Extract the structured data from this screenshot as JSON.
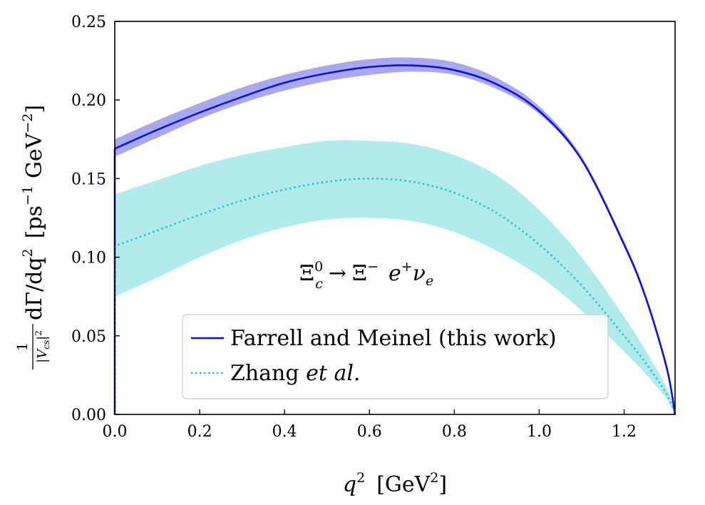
{
  "chart_data": {
    "type": "line",
    "xlabel": {
      "var": "q",
      "sup": "2",
      "unit_open": "[GeV",
      "unit_sup": "2",
      "unit_close": "]"
    },
    "ylabel": {
      "frac_num": "1",
      "frac_den": "|V",
      "frac_den_sub": "cs",
      "frac_den_close": "|",
      "frac_den_sup": "2",
      "main": "dΓ/dq",
      "main_sup": "2",
      "unit_a": "[ps",
      "unit_a_sup": "−1",
      "unit_b": "GeV",
      "unit_b_sup": "−2",
      "unit_close": "]"
    },
    "xlim": [
      0.0,
      1.32
    ],
    "ylim": [
      0.0,
      0.25
    ],
    "x_ticks": [
      0.0,
      0.2,
      0.4,
      0.6,
      0.8,
      1.0,
      1.2
    ],
    "x_tick_labels": [
      "0.0",
      "0.2",
      "0.4",
      "0.6",
      "0.8",
      "1.0",
      "1.2"
    ],
    "y_ticks": [
      0.0,
      0.05,
      0.1,
      0.15,
      0.2,
      0.25
    ],
    "y_tick_labels": [
      "0.00",
      "0.05",
      "0.10",
      "0.15",
      "0.20",
      "0.25"
    ],
    "grid": false,
    "legend_position": "lower-center",
    "annotation": {
      "Xi": "Ξ",
      "sup0": "0",
      "subc": "c",
      "arrow": "→",
      "Xi2": "Ξ",
      "supMinus": "−",
      "e": "e",
      "supPlus": "+",
      "nu": "ν",
      "subE": "e"
    },
    "series": [
      {
        "name": "Farrell and Meinel (this work)",
        "style": "solid",
        "color": "#1010d8",
        "band_color": "#a8a8f0",
        "x": [
          0.0,
          0.1,
          0.2,
          0.3,
          0.4,
          0.5,
          0.6,
          0.7,
          0.8,
          0.9,
          1.0,
          1.1,
          1.2,
          1.25,
          1.3,
          1.32
        ],
        "y": [
          0.169,
          0.181,
          0.192,
          0.202,
          0.211,
          0.217,
          0.221,
          0.222,
          0.219,
          0.21,
          0.193,
          0.162,
          0.108,
          0.075,
          0.03,
          0.0
        ],
        "band_lower": [
          0.164,
          0.176,
          0.188,
          0.198,
          0.206,
          0.212,
          0.216,
          0.218,
          0.216,
          0.207,
          0.191,
          0.161,
          0.107,
          0.074,
          0.029,
          0.0
        ],
        "band_upper": [
          0.175,
          0.187,
          0.198,
          0.208,
          0.216,
          0.222,
          0.226,
          0.227,
          0.224,
          0.214,
          0.196,
          0.164,
          0.11,
          0.077,
          0.032,
          0.0
        ]
      },
      {
        "name": "Zhang et al.",
        "name_prefix": "Zhang ",
        "name_italic": "et al",
        "name_suffix": ".",
        "style": "dotted",
        "color": "#20c0c0",
        "band_color": "#b2ebeb",
        "x": [
          0.0,
          0.1,
          0.2,
          0.3,
          0.4,
          0.5,
          0.6,
          0.7,
          0.8,
          0.9,
          1.0,
          1.1,
          1.2,
          1.25,
          1.3,
          1.32
        ],
        "y": [
          0.107,
          0.117,
          0.127,
          0.136,
          0.143,
          0.148,
          0.15,
          0.148,
          0.141,
          0.128,
          0.108,
          0.082,
          0.05,
          0.033,
          0.013,
          0.0
        ],
        "band_lower": [
          0.075,
          0.087,
          0.1,
          0.111,
          0.119,
          0.124,
          0.125,
          0.123,
          0.116,
          0.104,
          0.088,
          0.066,
          0.04,
          0.026,
          0.01,
          0.0
        ],
        "band_upper": [
          0.14,
          0.149,
          0.158,
          0.165,
          0.17,
          0.174,
          0.174,
          0.172,
          0.165,
          0.152,
          0.13,
          0.1,
          0.062,
          0.041,
          0.017,
          0.0
        ]
      }
    ]
  }
}
